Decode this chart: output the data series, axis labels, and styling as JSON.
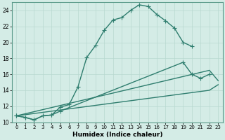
{
  "xlabel": "Humidex (Indice chaleur)",
  "background_color": "#d4ece6",
  "grid_color": "#b8d8d0",
  "line_color": "#2e7d6e",
  "xlim": [
    -0.5,
    23.5
  ],
  "ylim": [
    10,
    25
  ],
  "xticks": [
    0,
    1,
    2,
    3,
    4,
    5,
    6,
    7,
    8,
    9,
    10,
    11,
    12,
    13,
    14,
    15,
    16,
    17,
    18,
    19,
    20,
    21,
    22,
    23
  ],
  "yticks": [
    10,
    12,
    14,
    16,
    18,
    20,
    22,
    24
  ],
  "lines": [
    {
      "x": [
        0,
        1,
        2,
        3,
        4,
        5,
        6,
        7,
        8,
        9,
        10,
        11,
        12,
        13,
        14,
        15,
        16,
        17,
        18,
        19,
        20
      ],
      "y": [
        10.8,
        10.6,
        10.3,
        10.8,
        10.9,
        11.9,
        12.2,
        14.4,
        18.1,
        19.6,
        21.5,
        22.8,
        23.1,
        24.0,
        24.7,
        24.5,
        23.5,
        22.7,
        21.8,
        20.0,
        19.5
      ],
      "style": "-",
      "marker": "+",
      "linewidth": 1.0,
      "markersize": 5
    },
    {
      "x": [
        0,
        1,
        2,
        3,
        4,
        5,
        19,
        20,
        21,
        22
      ],
      "y": [
        10.8,
        10.6,
        10.3,
        10.8,
        10.9,
        11.4,
        17.5,
        16.0,
        15.5,
        16.0
      ],
      "style": "-",
      "marker": "+",
      "linewidth": 1.0,
      "markersize": 5
    },
    {
      "x": [
        0,
        22,
        23
      ],
      "y": [
        10.8,
        14.0,
        14.7
      ],
      "style": "-",
      "marker": null,
      "linewidth": 1.0,
      "markersize": 0
    },
    {
      "x": [
        0,
        22,
        23
      ],
      "y": [
        10.8,
        16.5,
        15.2
      ],
      "style": "-",
      "marker": null,
      "linewidth": 1.0,
      "markersize": 0
    }
  ]
}
